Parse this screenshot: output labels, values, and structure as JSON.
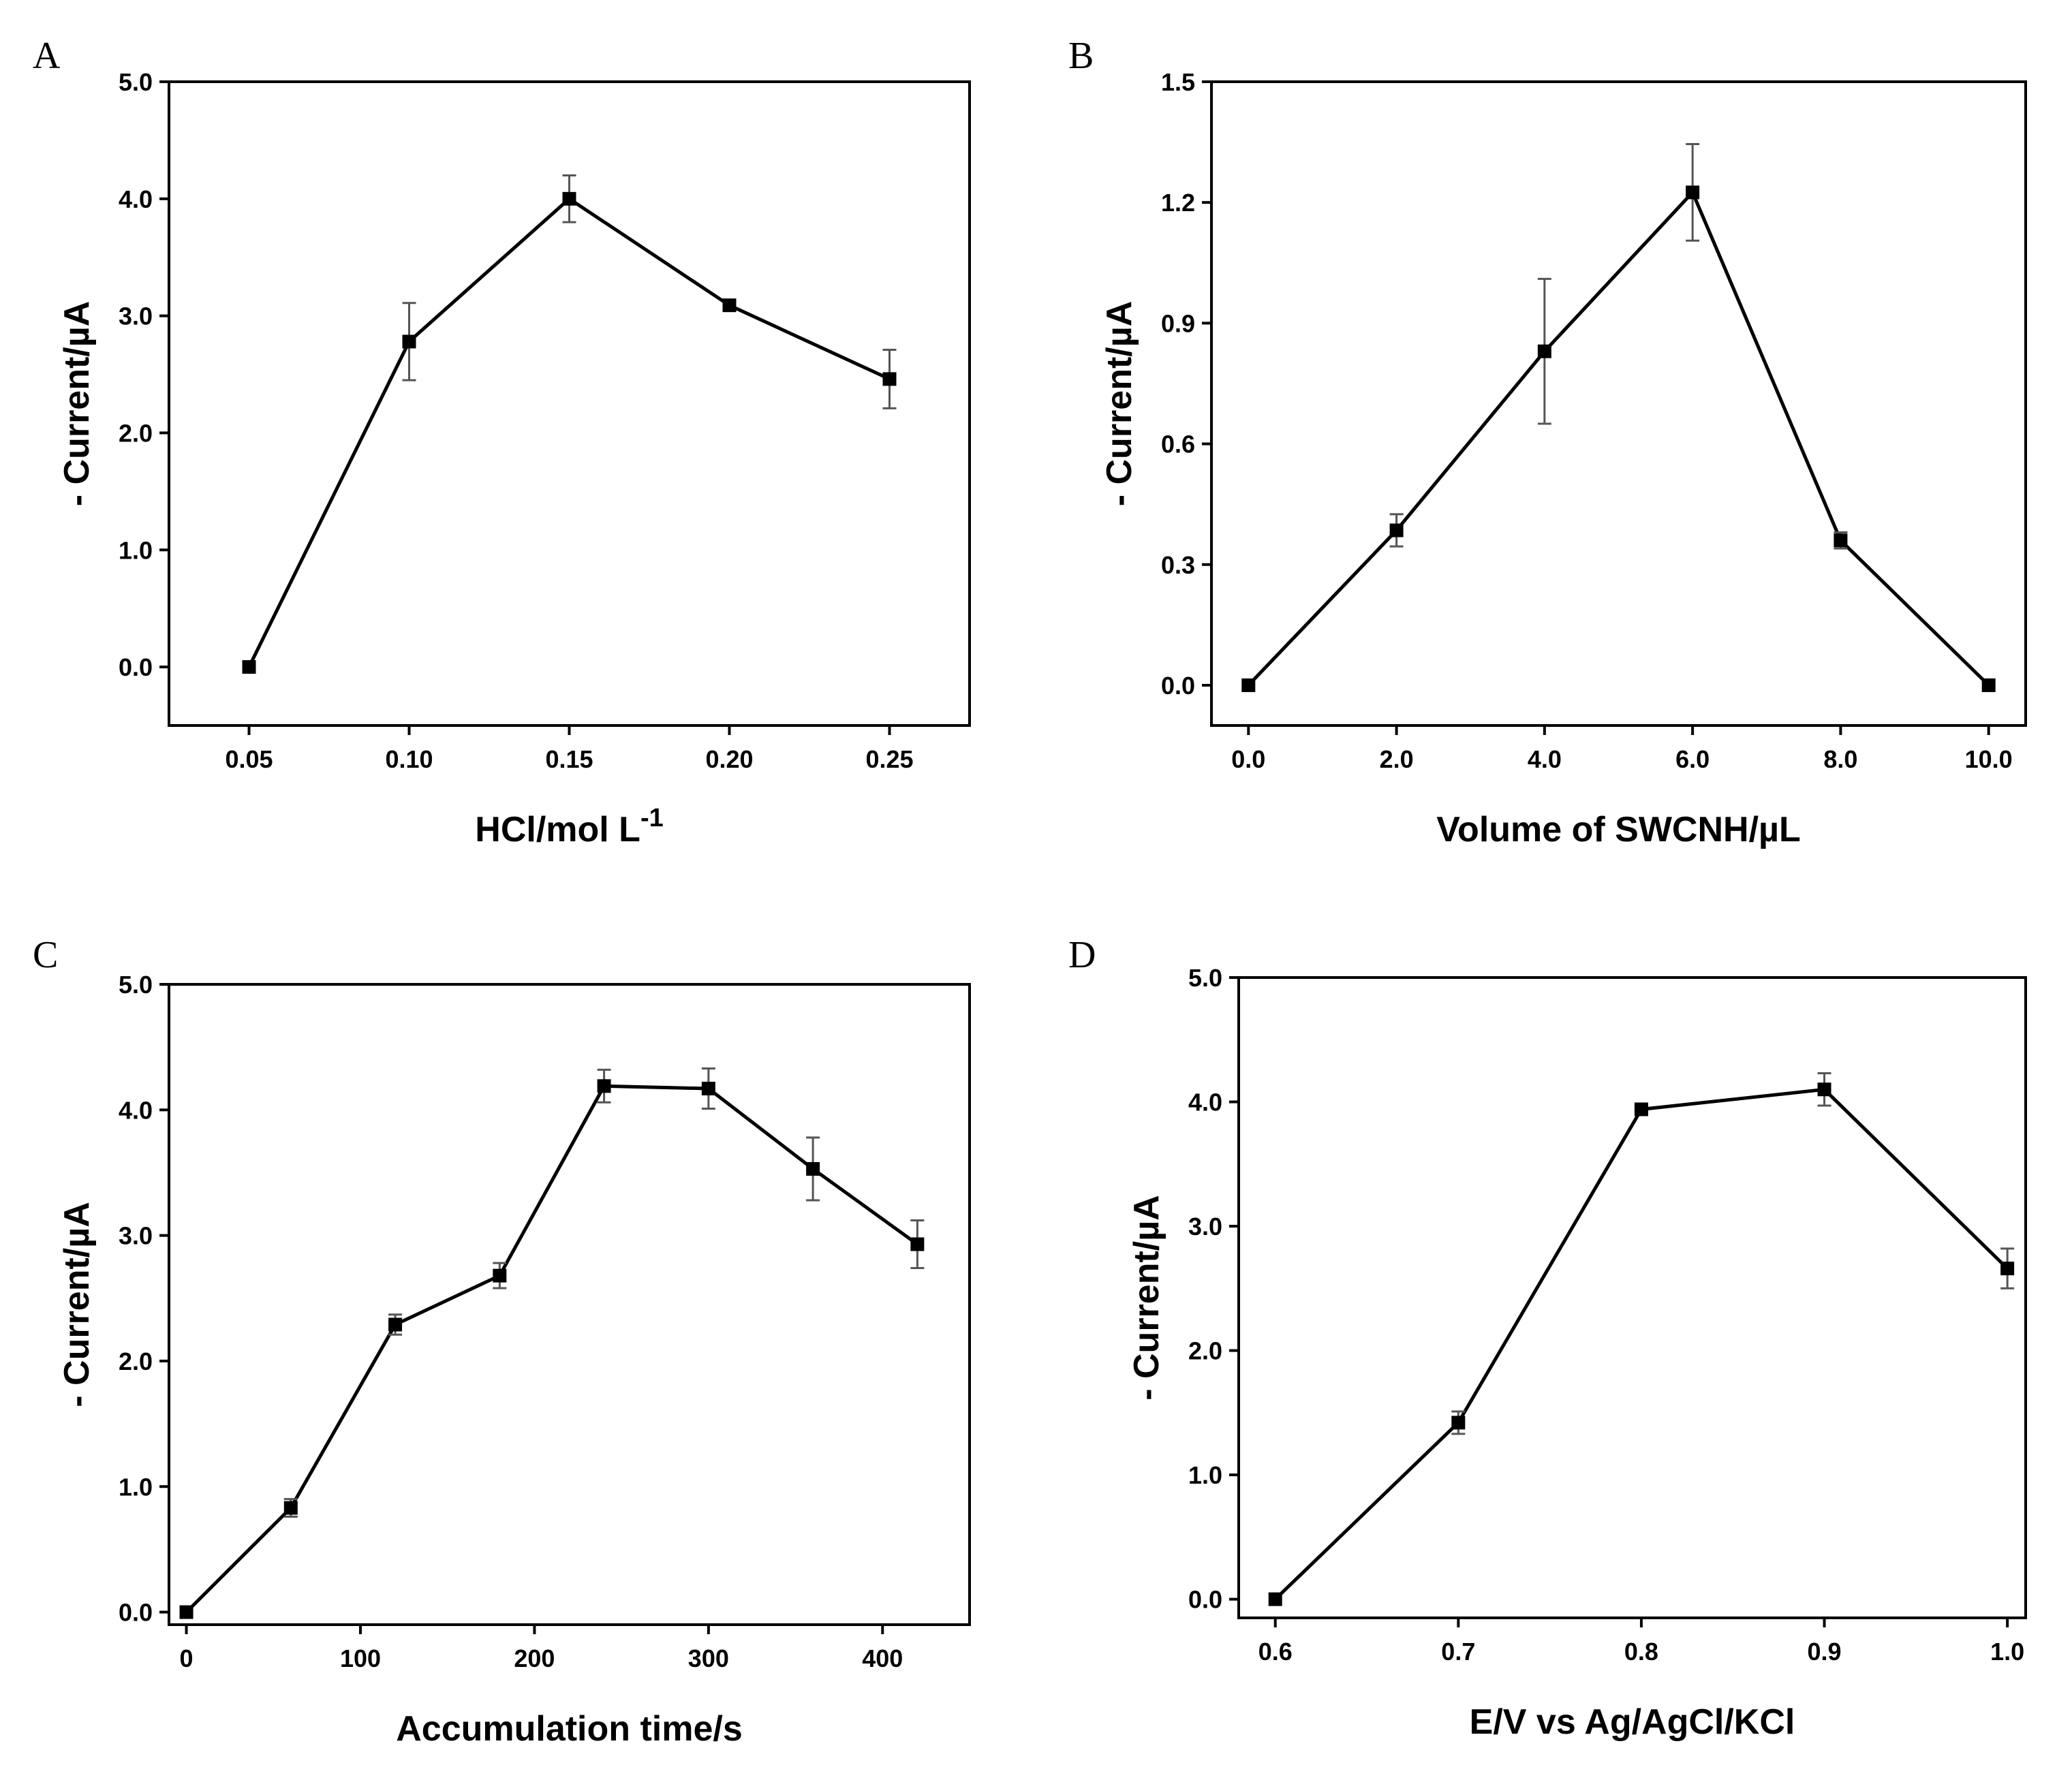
{
  "chart_data": [
    {
      "type": "line",
      "panel": "A",
      "xlabel": "HCl/mol L",
      "xlabel_sup": "-1",
      "ylabel": "- Current/µA",
      "xlim": [
        0.025,
        0.275
      ],
      "ylim": [
        -0.5,
        5.0
      ],
      "xticks": [
        0.05,
        0.1,
        0.15,
        0.2,
        0.25
      ],
      "xtick_labels": [
        "0.05",
        "0.10",
        "0.15",
        "0.20",
        "0.25"
      ],
      "yticks": [
        0,
        1,
        2,
        3,
        4,
        5
      ],
      "ytick_labels": [
        "0.0",
        "1.0",
        "2.0",
        "3.0",
        "4.0",
        "5.0"
      ],
      "x": [
        0.05,
        0.1,
        0.15,
        0.2,
        0.25
      ],
      "y": [
        0.0,
        2.78,
        4.0,
        3.09,
        2.46
      ],
      "err": [
        0.0,
        0.33,
        0.2,
        0.03,
        0.25
      ]
    },
    {
      "type": "line",
      "panel": "B",
      "xlabel": "Volume of SWCNH/µL",
      "ylabel": "- Current/µA",
      "xlim": [
        -0.5,
        10.5
      ],
      "ylim": [
        -0.1,
        1.5
      ],
      "xticks": [
        0,
        2,
        4,
        6,
        8,
        10
      ],
      "xtick_labels": [
        "0.0",
        "2.0",
        "4.0",
        "6.0",
        "8.0",
        "10.0"
      ],
      "yticks": [
        0,
        0.3,
        0.6,
        0.9,
        1.2,
        1.5
      ],
      "ytick_labels": [
        "0.0",
        "0.3",
        "0.6",
        "0.9",
        "1.2",
        "1.5"
      ],
      "x": [
        0,
        2,
        4,
        6,
        8,
        10
      ],
      "y": [
        0.0,
        0.385,
        0.83,
        1.225,
        0.36,
        0.0
      ],
      "err": [
        0.0,
        0.04,
        0.18,
        0.12,
        0.02,
        0.0
      ]
    },
    {
      "type": "line",
      "panel": "C",
      "xlabel": "Accumulation time/s",
      "ylabel": "- Current/µA",
      "xlim": [
        -10,
        450
      ],
      "ylim": [
        -0.1,
        5.0
      ],
      "xticks": [
        0,
        100,
        200,
        300,
        400
      ],
      "xtick_labels": [
        "0",
        "100",
        "200",
        "300",
        "400"
      ],
      "yticks": [
        0,
        1,
        2,
        3,
        4,
        5
      ],
      "ytick_labels": [
        "0.0",
        "1.0",
        "2.0",
        "3.0",
        "4.0",
        "5.0"
      ],
      "x": [
        0,
        60,
        120,
        180,
        240,
        300,
        360,
        420
      ],
      "y": [
        0.0,
        0.83,
        2.29,
        2.68,
        4.19,
        4.17,
        3.53,
        2.93
      ],
      "err": [
        0.0,
        0.07,
        0.08,
        0.1,
        0.13,
        0.16,
        0.25,
        0.19
      ]
    },
    {
      "type": "line",
      "panel": "D",
      "xlabel": "E/V vs Ag/AgCl/KCl",
      "ylabel": "- Current/µA",
      "xlim": [
        0.58,
        1.01
      ],
      "ylim": [
        -0.15,
        5.0
      ],
      "xticks": [
        0.6,
        0.7,
        0.8,
        0.9,
        1.0
      ],
      "xtick_labels": [
        "0.6",
        "0.7",
        "0.8",
        "0.9",
        "1.0"
      ],
      "yticks": [
        0,
        1,
        2,
        3,
        4,
        5
      ],
      "ytick_labels": [
        "0.0",
        "1.0",
        "2.0",
        "3.0",
        "4.0",
        "5.0"
      ],
      "x": [
        0.6,
        0.7,
        0.8,
        0.9,
        1.0
      ],
      "y": [
        0.0,
        1.42,
        3.94,
        4.1,
        2.66
      ],
      "err": [
        0.0,
        0.09,
        0.02,
        0.13,
        0.16
      ]
    }
  ]
}
